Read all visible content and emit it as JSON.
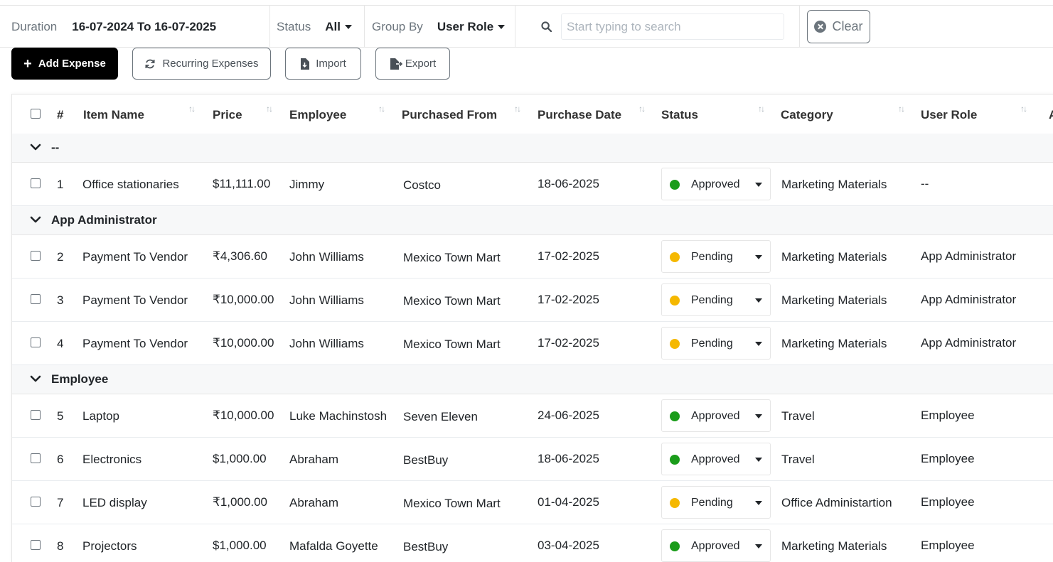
{
  "filters": {
    "duration_label": "Duration",
    "duration_value": "16-07-2024 To 16-07-2025",
    "status_label": "Status",
    "status_value": "All",
    "group_label": "Group By",
    "group_value": "User Role",
    "search_placeholder": "Start typing to search",
    "search_value": "",
    "clear_label": "Clear"
  },
  "toolbar": {
    "add_label": "Add Expense",
    "recurring_label": "Recurring Expenses",
    "import_label": "Import",
    "export_label": "Export"
  },
  "columns": {
    "index": "#",
    "item": "Item Name",
    "price": "Price",
    "employee": "Employee",
    "from": "Purchased From",
    "date": "Purchase Date",
    "status": "Status",
    "category": "Category",
    "role": "User Role",
    "next": "A"
  },
  "groups": [
    {
      "title": "--",
      "rows": [
        {
          "no": "1",
          "item": "Office stationaries",
          "price": "$11,111.00",
          "employee": "Jimmy",
          "from": "Costco",
          "date": "18-06-2025",
          "status": "Approved",
          "category": "Marketing Materials",
          "role": "--"
        }
      ]
    },
    {
      "title": "App Administrator",
      "rows": [
        {
          "no": "2",
          "item": "Payment To Vendor",
          "price": "₹4,306.60",
          "employee": "John Williams",
          "from": "Mexico Town Mart",
          "date": "17-02-2025",
          "status": "Pending",
          "category": "Marketing Materials",
          "role": "App Administrator"
        },
        {
          "no": "3",
          "item": "Payment To Vendor",
          "price": "₹10,000.00",
          "employee": "John Williams",
          "from": "Mexico Town Mart",
          "date": "17-02-2025",
          "status": "Pending",
          "category": "Marketing Materials",
          "role": "App Administrator"
        },
        {
          "no": "4",
          "item": "Payment To Vendor",
          "price": "₹10,000.00",
          "employee": "John Williams",
          "from": "Mexico Town Mart",
          "date": "17-02-2025",
          "status": "Pending",
          "category": "Marketing Materials",
          "role": "App Administrator"
        }
      ]
    },
    {
      "title": "Employee",
      "rows": [
        {
          "no": "5",
          "item": "Laptop",
          "price": "₹10,000.00",
          "employee": "Luke Machinstosh",
          "from": "Seven Eleven",
          "date": "24-06-2025",
          "status": "Approved",
          "category": "Travel",
          "role": "Employee"
        },
        {
          "no": "6",
          "item": "Electronics",
          "price": "$1,000.00",
          "employee": "Abraham",
          "from": "BestBuy",
          "date": "18-06-2025",
          "status": "Approved",
          "category": "Travel",
          "role": "Employee"
        },
        {
          "no": "7",
          "item": "LED display",
          "price": "₹1,000.00",
          "employee": "Abraham",
          "from": "Mexico Town Mart",
          "date": "01-04-2025",
          "status": "Pending",
          "category": "Office Administartion",
          "role": "Employee"
        },
        {
          "no": "8",
          "item": "Projectors",
          "price": "$1,000.00",
          "employee": "Mafalda Goyette",
          "from": "BestBuy",
          "date": "03-04-2025",
          "status": "Approved",
          "category": "Marketing Materials",
          "role": "Employee"
        }
      ]
    }
  ],
  "colors": {
    "approved": "#1a9c1a",
    "pending": "#f5b800",
    "primary_button": "#000000"
  }
}
